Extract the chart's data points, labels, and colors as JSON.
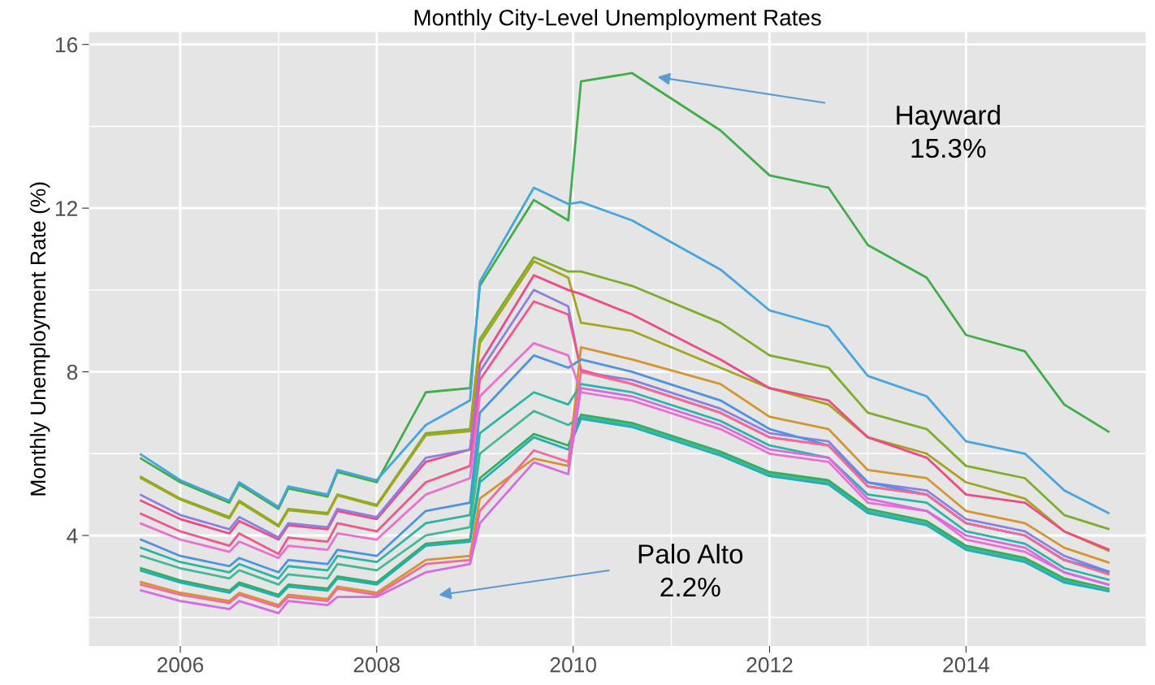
{
  "chart_data": {
    "type": "line",
    "title": "Monthly City-Level Unemployment Rates",
    "ylabel": "Monthly Unemployment Rate (%)",
    "x": [
      2005.6,
      2006.0,
      2006.5,
      2006.6,
      2007.0,
      2007.1,
      2007.5,
      2007.6,
      2008.0,
      2008.5,
      2008.95,
      2009.05,
      2009.6,
      2009.95,
      2010.08,
      2010.6,
      2011.5,
      2012.0,
      2012.6,
      2013.0,
      2013.6,
      2014.0,
      2014.6,
      2015.0,
      2015.45
    ],
    "series": [
      {
        "color": "#3fae49",
        "values": [
          5.88,
          5.3,
          4.8,
          5.25,
          4.65,
          5.15,
          4.95,
          5.55,
          5.3,
          7.5,
          7.6,
          10.1,
          12.2,
          11.7,
          15.1,
          15.3,
          13.9,
          12.8,
          12.5,
          11.1,
          10.3,
          8.9,
          8.5,
          7.2,
          6.54
        ]
      },
      {
        "color": "#45a5e0",
        "values": [
          5.98,
          5.35,
          4.85,
          5.3,
          4.7,
          5.2,
          5.0,
          5.6,
          5.35,
          6.7,
          7.3,
          10.2,
          12.5,
          12.1,
          12.15,
          11.7,
          10.5,
          9.5,
          9.1,
          7.9,
          7.4,
          6.3,
          6.0,
          5.1,
          4.55
        ]
      },
      {
        "color": "#7cae2a",
        "values": [
          5.43,
          4.9,
          4.45,
          4.85,
          4.25,
          4.65,
          4.55,
          5.0,
          4.75,
          6.5,
          6.6,
          8.8,
          10.8,
          10.45,
          10.45,
          10.1,
          9.2,
          8.4,
          8.1,
          7.0,
          6.6,
          5.7,
          5.4,
          4.5,
          4.16
        ]
      },
      {
        "color": "#a3a51c",
        "values": [
          5.4,
          4.88,
          4.42,
          4.82,
          4.22,
          4.62,
          4.52,
          4.98,
          4.72,
          6.45,
          6.55,
          8.7,
          10.7,
          10.3,
          9.2,
          9.0,
          8.1,
          7.6,
          7.2,
          6.4,
          6.0,
          5.3,
          4.9,
          4.1,
          3.63
        ]
      },
      {
        "color": "#ee4a86",
        "values": [
          4.85,
          4.4,
          4.05,
          4.35,
          3.9,
          4.25,
          4.15,
          4.6,
          4.4,
          5.8,
          6.1,
          8.2,
          10.36,
          10.0,
          9.9,
          9.4,
          8.3,
          7.6,
          7.3,
          6.4,
          5.9,
          5.0,
          4.8,
          4.1,
          3.66
        ]
      },
      {
        "color": "#8b80e0",
        "values": [
          4.99,
          4.5,
          4.15,
          4.45,
          3.95,
          4.3,
          4.2,
          4.65,
          4.45,
          5.9,
          6.1,
          8.0,
          10.0,
          9.6,
          8.0,
          7.8,
          7.1,
          6.5,
          6.3,
          5.3,
          5.1,
          4.4,
          4.1,
          3.5,
          3.12
        ]
      },
      {
        "color": "#f0568c",
        "values": [
          4.53,
          4.1,
          3.75,
          4.05,
          3.55,
          3.95,
          3.85,
          4.3,
          4.1,
          5.3,
          5.7,
          7.8,
          9.72,
          9.4,
          8.05,
          7.7,
          7.0,
          6.4,
          6.2,
          5.2,
          5.0,
          4.3,
          4.0,
          3.4,
          3.1
        ]
      },
      {
        "color": "#d49530",
        "values": [
          2.86,
          2.6,
          2.4,
          2.6,
          2.3,
          2.55,
          2.45,
          2.75,
          2.6,
          3.4,
          3.5,
          4.9,
          5.88,
          5.7,
          8.6,
          8.3,
          7.7,
          6.9,
          6.6,
          5.6,
          5.4,
          4.6,
          4.3,
          3.7,
          3.34
        ]
      },
      {
        "color": "#4f92e3",
        "values": [
          3.9,
          3.5,
          3.25,
          3.45,
          3.1,
          3.4,
          3.3,
          3.65,
          3.5,
          4.6,
          4.8,
          7.0,
          8.4,
          8.1,
          8.3,
          8.0,
          7.3,
          6.6,
          6.2,
          5.3,
          5.0,
          4.3,
          4.0,
          3.4,
          3.12
        ]
      },
      {
        "color": "#ea6fd0",
        "values": [
          4.29,
          3.9,
          3.6,
          3.85,
          3.45,
          3.75,
          3.65,
          4.05,
          3.9,
          5.0,
          5.4,
          7.4,
          8.7,
          8.4,
          7.5,
          7.3,
          6.6,
          6.0,
          5.8,
          4.8,
          4.6,
          3.9,
          3.6,
          3.1,
          2.8
        ]
      },
      {
        "color": "#2cb5a4",
        "values": [
          3.7,
          3.35,
          3.1,
          3.3,
          2.95,
          3.25,
          3.15,
          3.5,
          3.35,
          4.3,
          4.5,
          6.5,
          7.5,
          7.2,
          7.7,
          7.5,
          6.8,
          6.2,
          5.9,
          5.0,
          4.8,
          4.1,
          3.8,
          3.2,
          2.92
        ]
      },
      {
        "color": "#41b896",
        "values": [
          3.5,
          3.2,
          2.95,
          3.15,
          2.8,
          3.05,
          2.95,
          3.3,
          3.15,
          4.0,
          4.2,
          6.0,
          7.04,
          6.7,
          6.9,
          6.7,
          6.0,
          5.5,
          5.3,
          4.6,
          4.3,
          3.7,
          3.4,
          2.9,
          2.64
        ]
      },
      {
        "color": "#36ad5c",
        "values": [
          3.2,
          2.9,
          2.65,
          2.85,
          2.55,
          2.8,
          2.7,
          3.0,
          2.85,
          3.8,
          3.9,
          5.4,
          6.48,
          6.2,
          6.95,
          6.75,
          6.05,
          5.55,
          5.35,
          4.65,
          4.35,
          3.75,
          3.45,
          2.95,
          2.7
        ]
      },
      {
        "color": "#22aeb6",
        "values": [
          3.14,
          2.85,
          2.6,
          2.8,
          2.5,
          2.75,
          2.65,
          2.95,
          2.8,
          3.75,
          3.85,
          5.3,
          6.4,
          6.1,
          6.85,
          6.65,
          5.95,
          5.45,
          5.25,
          4.55,
          4.25,
          3.65,
          3.35,
          2.85,
          2.64
        ]
      },
      {
        "color": "#f06b9b",
        "values": [
          2.8,
          2.55,
          2.35,
          2.55,
          2.25,
          2.5,
          2.4,
          2.7,
          2.55,
          3.3,
          3.4,
          4.6,
          6.08,
          5.8,
          8.0,
          7.7,
          7.0,
          6.4,
          6.2,
          5.2,
          5.0,
          4.3,
          4.0,
          3.4,
          3.05
        ]
      },
      {
        "color": "#d66ae2",
        "values": [
          2.66,
          2.4,
          2.2,
          2.4,
          2.1,
          2.4,
          2.3,
          2.5,
          2.5,
          3.1,
          3.3,
          4.3,
          5.79,
          5.5,
          7.6,
          7.4,
          6.7,
          6.1,
          5.9,
          4.9,
          4.6,
          4.0,
          3.7,
          3.1,
          2.8
        ]
      }
    ],
    "xlim": [
      2005.07,
      2015.83
    ],
    "xticks": [
      2006,
      2008,
      2010,
      2012,
      2014
    ],
    "ylim": [
      1.3,
      16.3
    ],
    "yticks": [
      4,
      8,
      12,
      16
    ],
    "grid": true,
    "line_style": "solid",
    "annotations": [
      "Hayward\n15.3%",
      "Palo Alto\n2.2%"
    ]
  }
}
